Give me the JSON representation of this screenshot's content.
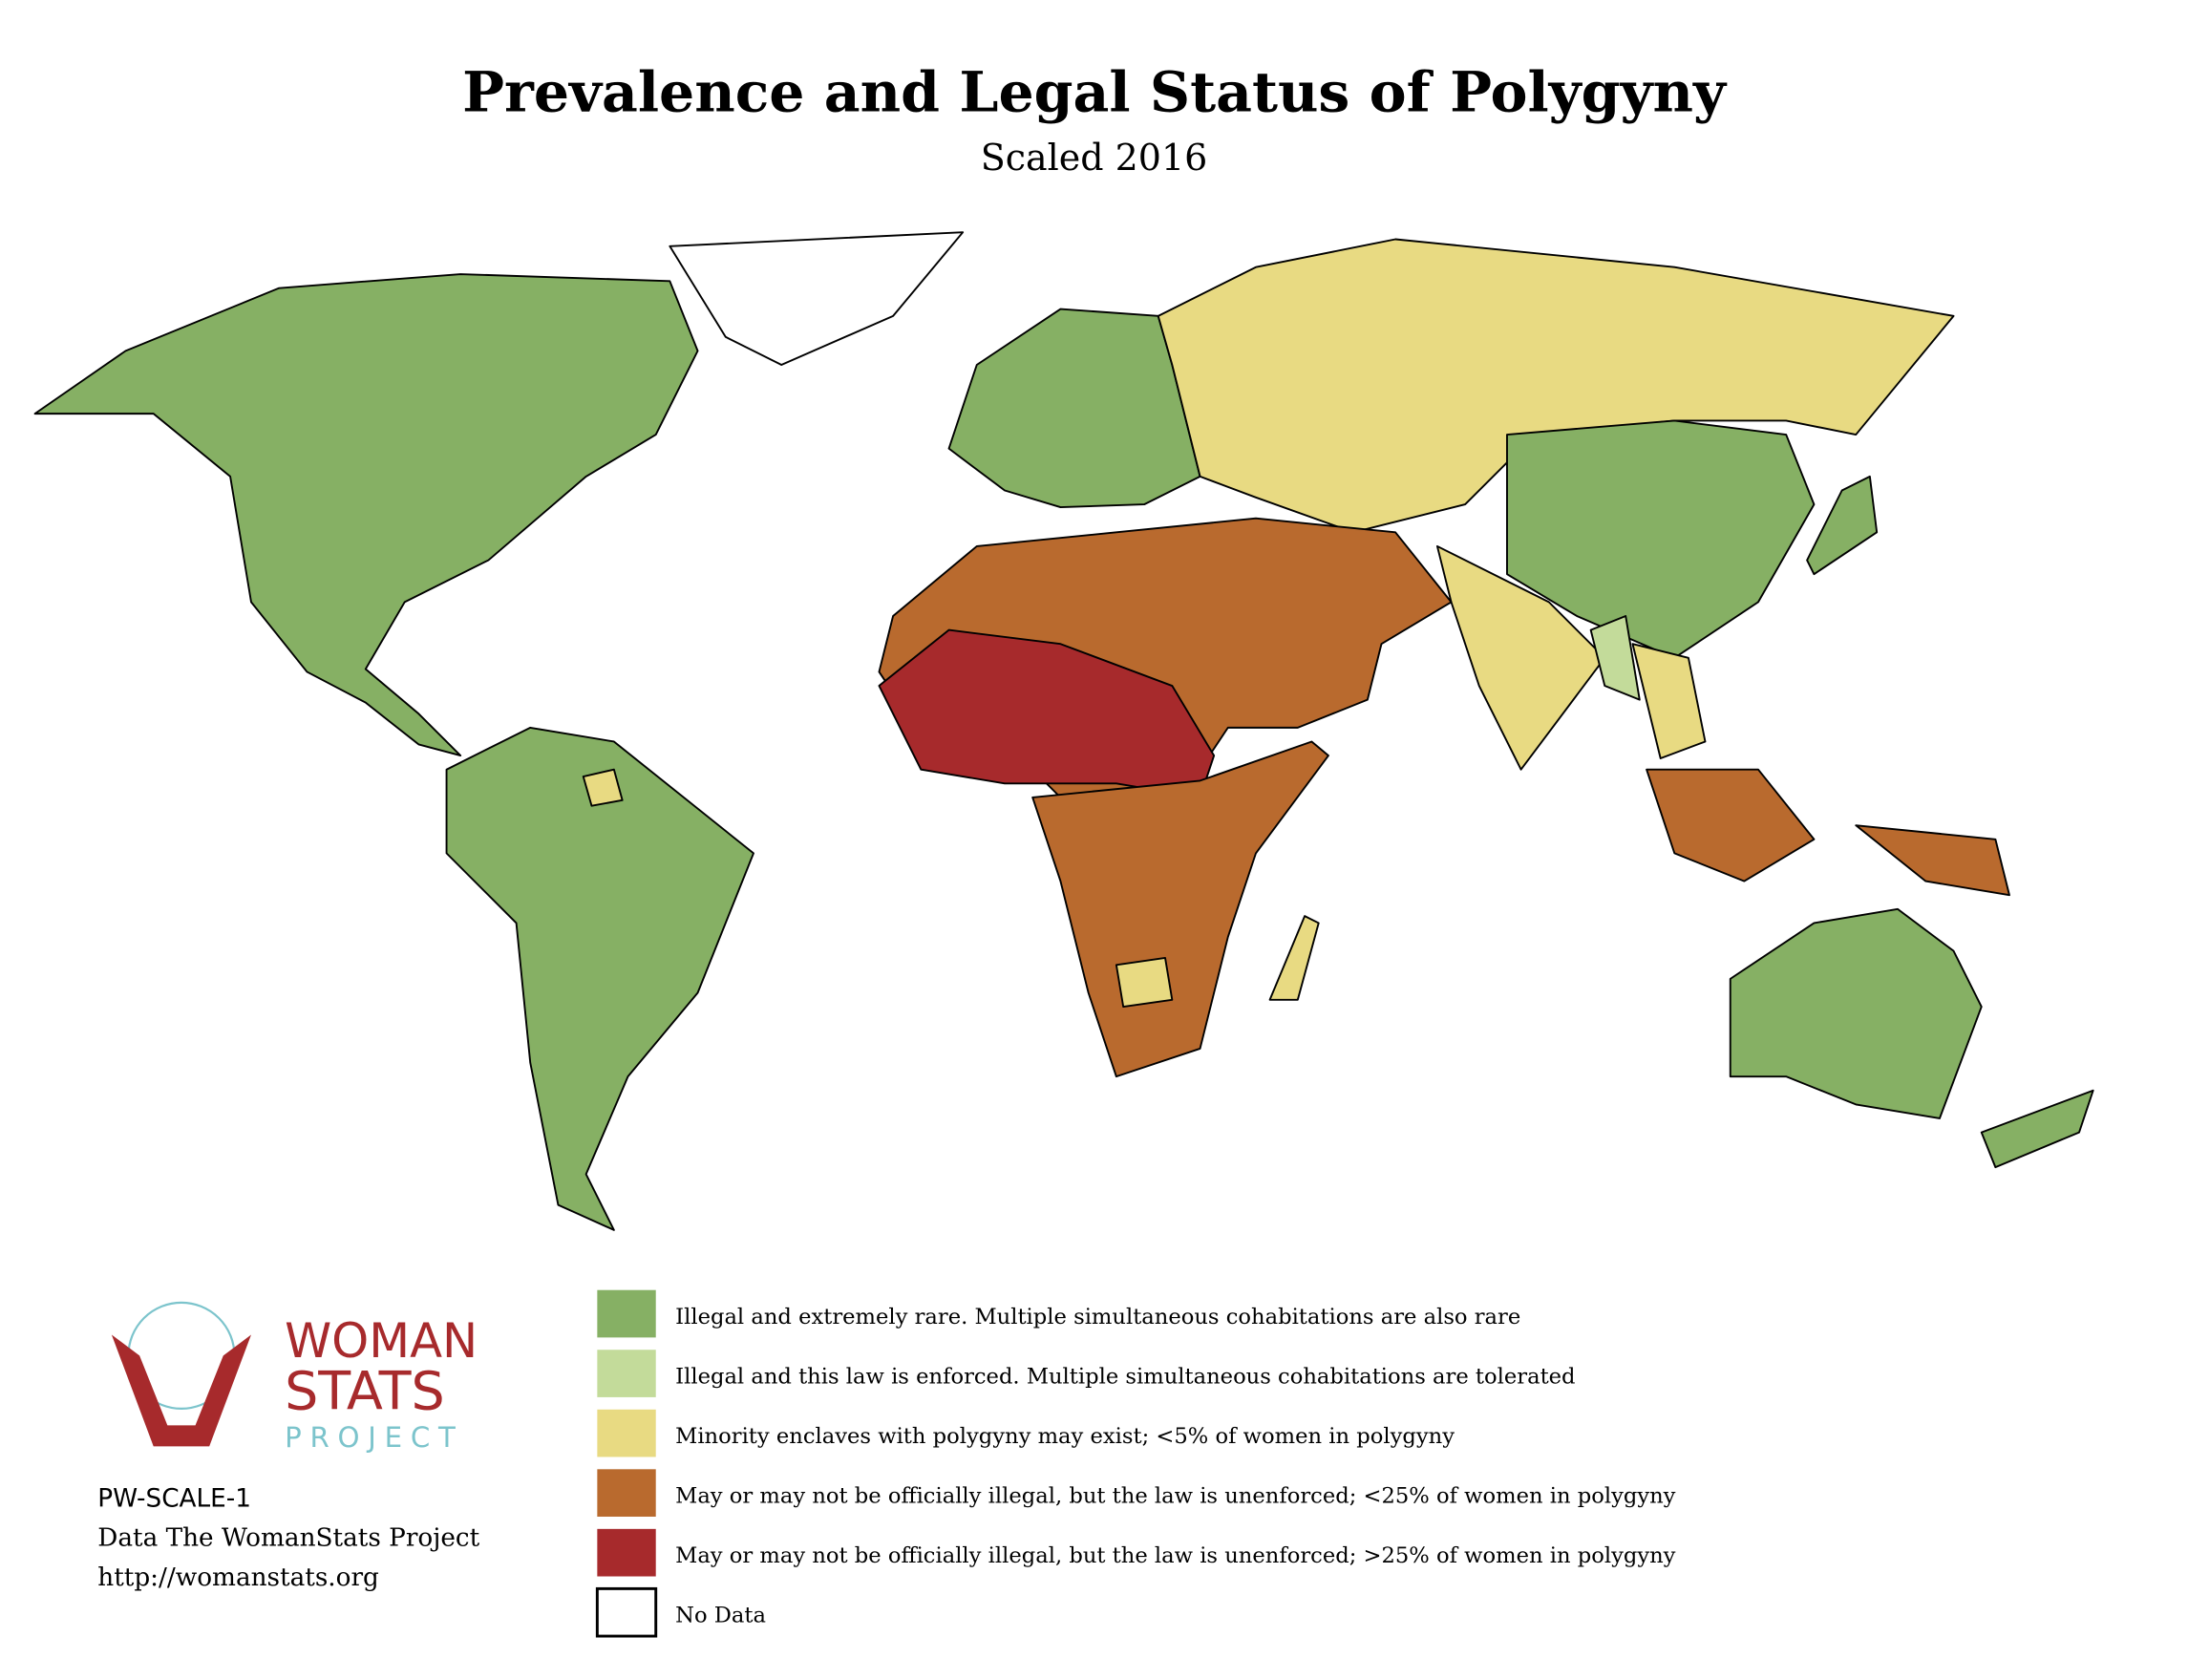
{
  "header": {
    "title": "Prevalence and Legal Status of Polygyny",
    "subtitle": "Scaled 2016"
  },
  "legend": [
    {
      "label": "Illegal and extremely rare. Multiple simultaneous cohabitations are also rare",
      "color": "#86b064"
    },
    {
      "label": "Illegal and this law is enforced. Multiple simultaneous cohabitations are tolerated",
      "color": "#c3db9a"
    },
    {
      "label": "Minority enclaves with polygyny may exist; <5% of women in polygyny",
      "color": "#e8da82"
    },
    {
      "label": "May or may not be officially illegal, but the law is unenforced; <25% of women in polygyny",
      "color": "#b96a2e"
    },
    {
      "label": "May or may not be officially illegal, but the law is unenforced; >25% of women in polygyny",
      "color": "#a72a2c"
    },
    {
      "label": "No Data",
      "color": "#ffffff"
    }
  ],
  "logo": {
    "line1": "WOMAN",
    "line2": "STATS",
    "line3": "PROJECT"
  },
  "footer": [
    "PW-SCALE-1",
    "Data The WomanStats Project",
    "http://womanstats.org"
  ]
}
